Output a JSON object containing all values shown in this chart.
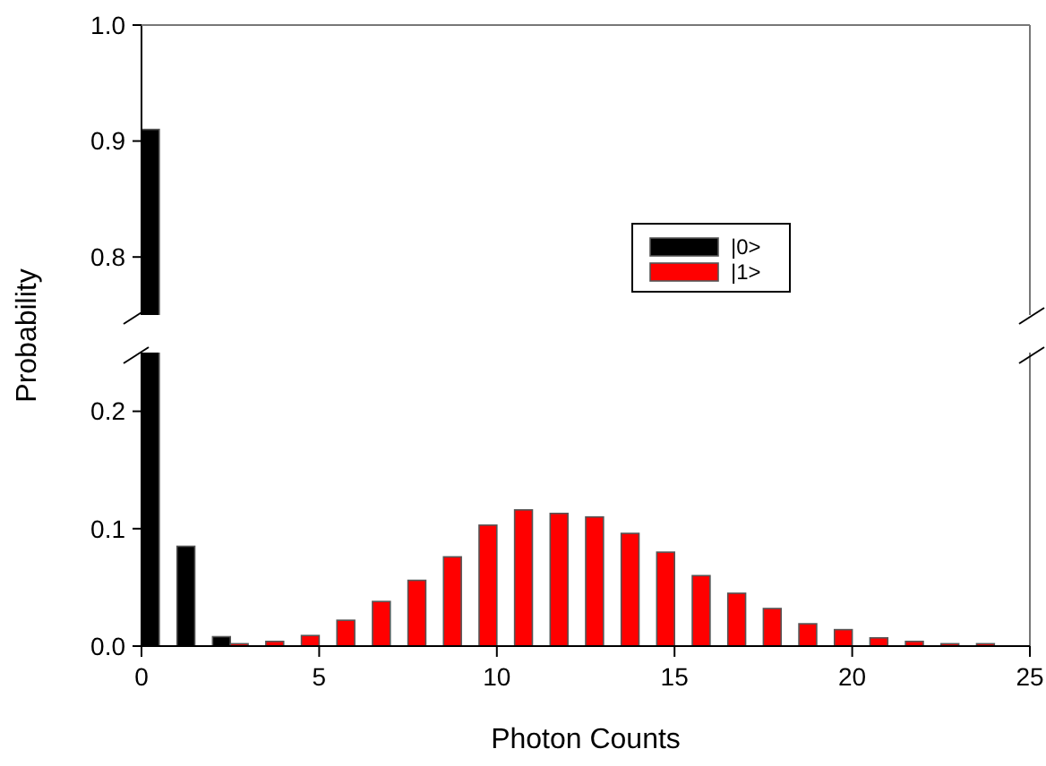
{
  "chart_data": [
    {
      "type": "bar",
      "xlim": [
        0,
        25
      ],
      "ylim": [
        0.75,
        1.0
      ],
      "yticks": [
        0.8,
        0.9,
        {
          "value": 1.0,
          "label": "1.0"
        }
      ],
      "tick_labels": "y",
      "legend": "right",
      "ylabel": "Probability",
      "series": [
        {
          "name": "|0>",
          "color": "#000000",
          "x": [
            0.25
          ],
          "values": [
            0.91
          ]
        },
        {
          "name": "|1>",
          "color": "#ff0000"
        }
      ]
    },
    {
      "type": "bar",
      "xlim": [
        0,
        25
      ],
      "xticks": [
        0,
        5,
        10,
        15,
        20,
        25
      ],
      "ylim": [
        0,
        0.25
      ],
      "yticks": [
        {
          "value": 0,
          "label": "0.0"
        },
        0.1,
        0.2
      ],
      "xlabel": "Photon Counts",
      "legend": false,
      "series": [
        {
          "color": "#000000",
          "x": [
            1.25,
            2.25
          ],
          "values": [
            0.085,
            0.008
          ]
        },
        {
          "color": "#ff0000",
          "x": [
            2.75,
            3.75,
            4.75,
            5.75,
            6.75,
            7.75,
            8.75,
            9.75,
            10.75,
            11.75,
            12.75,
            13.75,
            14.75,
            15.75,
            16.75,
            17.75,
            18.75,
            19.75,
            20.75,
            21.75,
            22.75,
            23.75
          ],
          "values": [
            0.002,
            0.004,
            0.009,
            0.022,
            0.038,
            0.056,
            0.076,
            0.103,
            0.116,
            0.113,
            0.11,
            0.096,
            0.08,
            0.06,
            0.045,
            0.032,
            0.019,
            0.014,
            0.007,
            0.004,
            0.002,
            0.002
          ]
        }
      ]
    }
  ]
}
